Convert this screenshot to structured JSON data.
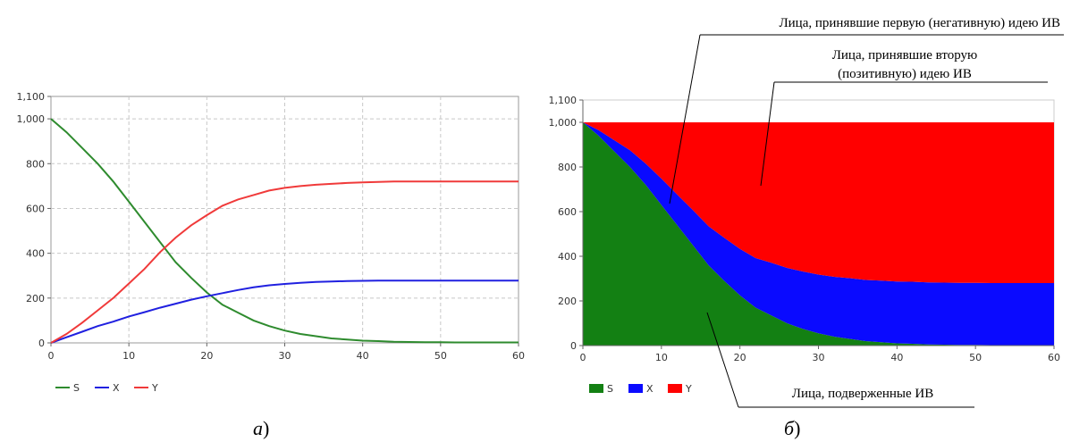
{
  "chart_data": [
    {
      "id": "a",
      "type": "line",
      "caption_letter": "а",
      "caption_paren": ")",
      "x": [
        0,
        2,
        4,
        6,
        8,
        10,
        12,
        14,
        16,
        18,
        20,
        22,
        24,
        26,
        28,
        30,
        32,
        34,
        36,
        38,
        40,
        42,
        44,
        46,
        48,
        50,
        52,
        54,
        56,
        58,
        60
      ],
      "series": [
        {
          "name": "S",
          "color": "#2e8b2e",
          "values": [
            1000,
            940,
            870,
            800,
            720,
            630,
            540,
            450,
            360,
            290,
            225,
            170,
            135,
            100,
            75,
            55,
            40,
            30,
            20,
            15,
            10,
            8,
            5,
            4,
            3,
            3,
            2,
            2,
            2,
            2,
            2
          ]
        },
        {
          "name": "X",
          "color": "#2020e0",
          "values": [
            0,
            25,
            50,
            75,
            95,
            118,
            137,
            157,
            175,
            193,
            208,
            222,
            236,
            248,
            257,
            263,
            268,
            272,
            274,
            276,
            277,
            278,
            278,
            278,
            278,
            278,
            278,
            278,
            278,
            278,
            278
          ]
        },
        {
          "name": "Y",
          "color": "#f03a3a",
          "values": [
            0,
            40,
            90,
            145,
            200,
            265,
            330,
            405,
            470,
            525,
            570,
            612,
            640,
            660,
            680,
            692,
            700,
            706,
            710,
            714,
            716,
            718,
            720,
            720,
            720,
            720,
            720,
            720,
            720,
            720,
            720
          ]
        }
      ],
      "xlim": [
        0,
        60
      ],
      "ylim": [
        0,
        1100
      ],
      "x_ticks": [
        0,
        10,
        20,
        30,
        40,
        50,
        60
      ],
      "y_ticks": [
        0,
        200,
        400,
        600,
        800,
        1000,
        1100
      ],
      "y_tick_labels": [
        "0",
        "200",
        "400",
        "600",
        "800",
        "1,000",
        "1,100"
      ],
      "grid": true,
      "legend_position": "bottom-left"
    },
    {
      "id": "b",
      "type": "area",
      "caption_letter": "б",
      "caption_paren": ")",
      "x": [
        0,
        2,
        4,
        6,
        8,
        10,
        12,
        14,
        16,
        18,
        20,
        22,
        24,
        26,
        28,
        30,
        32,
        34,
        36,
        38,
        40,
        42,
        44,
        46,
        48,
        50,
        52,
        54,
        56,
        58,
        60
      ],
      "series": [
        {
          "name": "S",
          "color": "#138013",
          "values": [
            1000,
            940,
            870,
            800,
            720,
            630,
            540,
            450,
            360,
            290,
            225,
            170,
            135,
            100,
            75,
            55,
            40,
            30,
            20,
            15,
            10,
            8,
            5,
            4,
            3,
            3,
            2,
            2,
            2,
            2,
            2
          ]
        },
        {
          "name": "X",
          "color": "#0a0aff",
          "values": [
            0,
            25,
            50,
            75,
            95,
            118,
            137,
            157,
            175,
            193,
            208,
            222,
            236,
            248,
            257,
            263,
            268,
            272,
            274,
            276,
            277,
            278,
            278,
            278,
            278,
            278,
            278,
            278,
            278,
            278,
            278
          ]
        },
        {
          "name": "Y",
          "color": "#ff0000",
          "values": [
            0,
            35,
            80,
            125,
            185,
            252,
            323,
            393,
            465,
            517,
            567,
            608,
            629,
            652,
            668,
            682,
            692,
            698,
            706,
            709,
            713,
            714,
            717,
            718,
            719,
            719,
            720,
            720,
            720,
            720,
            720
          ]
        }
      ],
      "stacked": true,
      "xlim": [
        0,
        60
      ],
      "ylim": [
        0,
        1100
      ],
      "x_ticks": [
        0,
        10,
        20,
        30,
        40,
        50,
        60
      ],
      "y_ticks": [
        0,
        200,
        400,
        600,
        800,
        1000,
        1100
      ],
      "y_tick_labels": [
        "0",
        "200",
        "400",
        "600",
        "800",
        "1,000",
        "1,100"
      ],
      "grid": false,
      "legend_position": "bottom-left",
      "annotations": [
        {
          "lines": [
            "Лица, принявшие первую (негативную) идею ИВ"
          ]
        },
        {
          "lines": [
            "Лица, принявшие вторую",
            "(позитивную) идею ИВ"
          ]
        },
        {
          "lines": [
            "Лица, подверженные ИВ"
          ]
        }
      ]
    }
  ]
}
